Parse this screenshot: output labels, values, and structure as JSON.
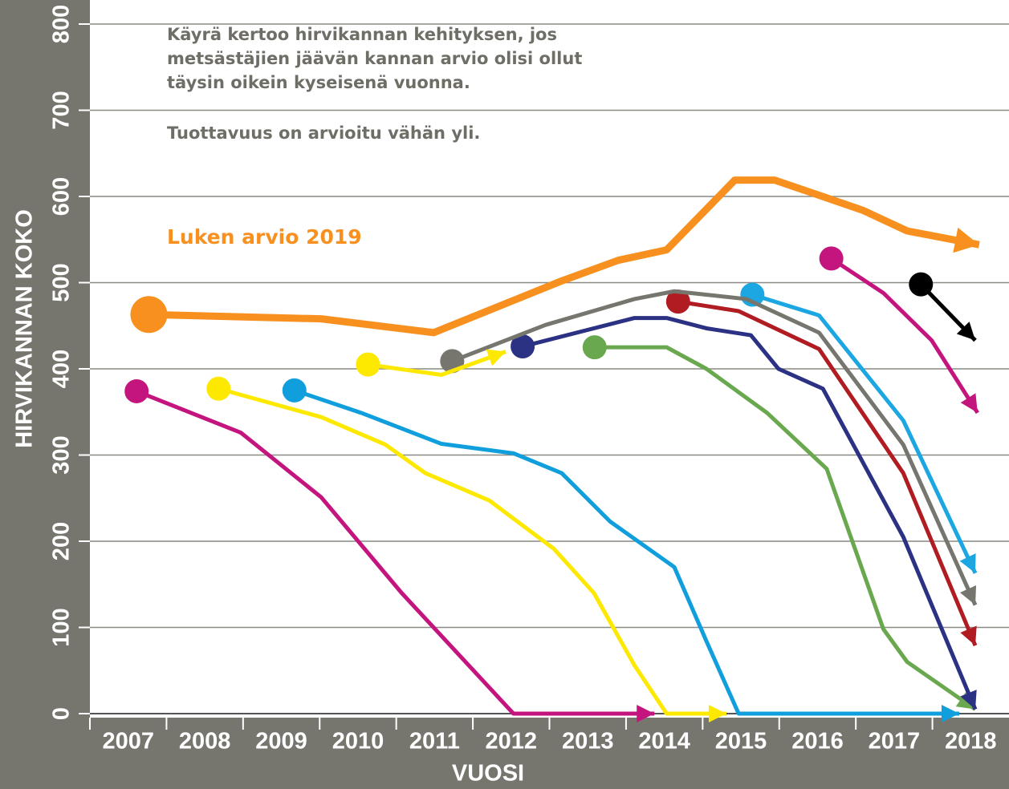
{
  "chart_data": {
    "type": "line",
    "annotations": [
      "Käyrä kertoo hirvikannan kehityksen, jos",
      "metsästäjien jäävän kannan arvio olisi ollut",
      "täysin oikein kyseisenä vuonna.",
      "Tuottavuus on arvioitu vähän yli."
    ],
    "ylabel": "HIRVIKANNAN KOKO",
    "xlabel": "VUOSI",
    "xlim": [
      2007,
      2019
    ],
    "xticks": [
      {
        "value": 2007,
        "label": "2007"
      },
      {
        "value": 2008,
        "label": "2008"
      },
      {
        "value": 2009,
        "label": "2009"
      },
      {
        "value": 2010,
        "label": "2010"
      },
      {
        "value": 2011,
        "label": "2011"
      },
      {
        "value": 2012,
        "label": "2012"
      },
      {
        "value": 2013,
        "label": "2013"
      },
      {
        "value": 2014,
        "label": "2014"
      },
      {
        "value": 2015,
        "label": "2015"
      },
      {
        "value": 2016,
        "label": "2016"
      },
      {
        "value": 2017,
        "label": "2017"
      },
      {
        "value": 2018,
        "label": "2018"
      }
    ],
    "ylim": [
      0,
      800
    ],
    "yticks": [
      0,
      100,
      200,
      300,
      400,
      500,
      600,
      700,
      800
    ],
    "grid": true,
    "series": [
      {
        "name": "Luken arvio 2019",
        "color": "#f7901e",
        "x": [
          2007.77,
          2010.02,
          2011.49,
          2013.16,
          2013.9,
          2014.53,
          2015.42,
          2015.94,
          2017.09,
          2017.67,
          2018.61
        ],
        "values": [
          463,
          458,
          442,
          502,
          526,
          538,
          619,
          619,
          584,
          560,
          544
        ]
      },
      {
        "color": "#c4157f",
        "x": [
          2007.61,
          2008.97,
          2010.02,
          2011.07,
          2012.53,
          2014.37
        ],
        "values": [
          374,
          326,
          251,
          140,
          0,
          0
        ]
      },
      {
        "color": "#fde800",
        "x": [
          2008.68,
          2010.02,
          2010.86,
          2011.38,
          2012.22,
          2013.06,
          2013.58,
          2014.11,
          2014.53,
          2015.31
        ],
        "values": [
          377,
          344,
          312,
          279,
          247,
          191,
          140,
          56,
          0,
          0
        ]
      },
      {
        "color": "#109fdc",
        "x": [
          2009.67,
          2010.54,
          2011.59,
          2012.53,
          2013.16,
          2013.79,
          2014.63,
          2015.05,
          2015.47,
          2018.35
        ],
        "values": [
          375,
          349,
          313,
          302,
          279,
          223,
          170,
          84,
          0,
          0
        ]
      },
      {
        "color": "#fde800",
        "x": [
          2010.63,
          2011.59,
          2012.43
        ],
        "values": [
          405,
          393,
          420
        ]
      },
      {
        "color": "#76756e",
        "x": [
          2011.73,
          2012.95,
          2014.11,
          2014.63,
          2015.57,
          2016.52,
          2017.62,
          2018.56
        ],
        "values": [
          409,
          451,
          481,
          490,
          481,
          442,
          312,
          126
        ]
      },
      {
        "color": "#2b3183",
        "x": [
          2012.65,
          2014.11,
          2014.53,
          2015.05,
          2015.63,
          2015.99,
          2016.57,
          2017.62,
          2018.56
        ],
        "values": [
          426,
          459,
          459,
          447,
          439,
          400,
          377,
          205,
          5
        ]
      },
      {
        "color": "#6aa84f",
        "x": [
          2013.59,
          2014.53,
          2015.05,
          2015.84,
          2016.62,
          2017.36,
          2017.67,
          2018.56
        ],
        "values": [
          425,
          425,
          400,
          349,
          284,
          98,
          60,
          5
        ]
      },
      {
        "color": "#b01c22",
        "x": [
          2014.68,
          2015.47,
          2016.52,
          2017.62,
          2018.56
        ],
        "values": [
          478,
          467,
          423,
          279,
          79
        ]
      },
      {
        "color": "#1ca6e2",
        "x": [
          2015.65,
          2016.52,
          2017.62,
          2018.56
        ],
        "values": [
          486,
          462,
          340,
          163
        ]
      },
      {
        "color": "#c4157f",
        "x": [
          2016.68,
          2017.36,
          2017.99,
          2018.59
        ],
        "values": [
          528,
          488,
          433,
          349
        ]
      },
      {
        "color": "#000000",
        "x": [
          2017.85,
          2018.56
        ],
        "values": [
          498,
          433
        ]
      }
    ]
  }
}
